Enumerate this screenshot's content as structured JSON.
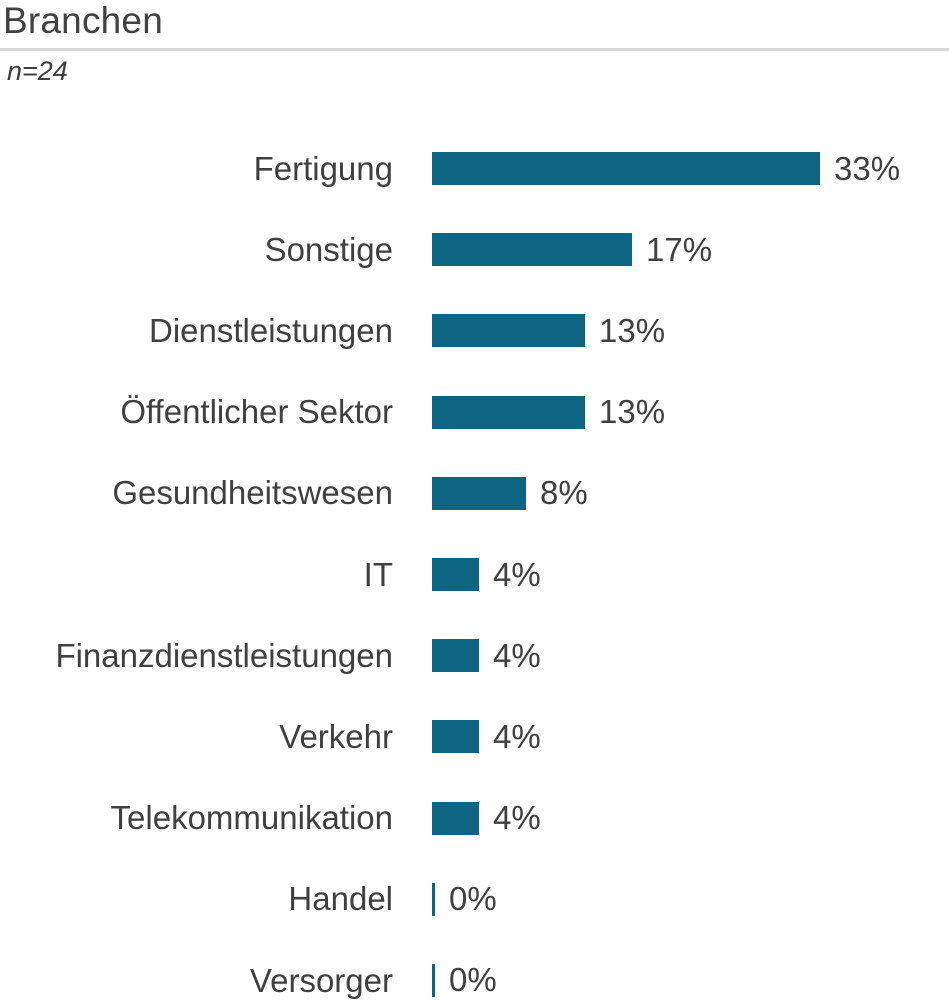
{
  "header": {
    "title": "Branchen",
    "subtitle": "n=24"
  },
  "chart_data": {
    "type": "bar",
    "orientation": "horizontal",
    "title": "Branchen",
    "subtitle": "n=24",
    "n": 24,
    "categories": [
      "Fertigung",
      "Sonstige",
      "Dienstleistungen",
      "Öffentlicher Sektor",
      "Gesundheitswesen",
      "IT",
      "Finanzdienstleistungen",
      "Verkehr",
      "Telekommunikation",
      "Handel",
      "Versorger"
    ],
    "values": [
      33,
      17,
      13,
      13,
      8,
      4,
      4,
      4,
      4,
      0,
      0
    ],
    "value_labels": [
      "33%",
      "17%",
      "13%",
      "13%",
      "8%",
      "4%",
      "4%",
      "4%",
      "4%",
      "0%",
      "0%"
    ],
    "xlim": [
      0,
      33
    ],
    "grid": false,
    "legend": false,
    "bar_color": "#0e6583",
    "label_color": "#404040",
    "value_label_position": "end-of-bar"
  }
}
